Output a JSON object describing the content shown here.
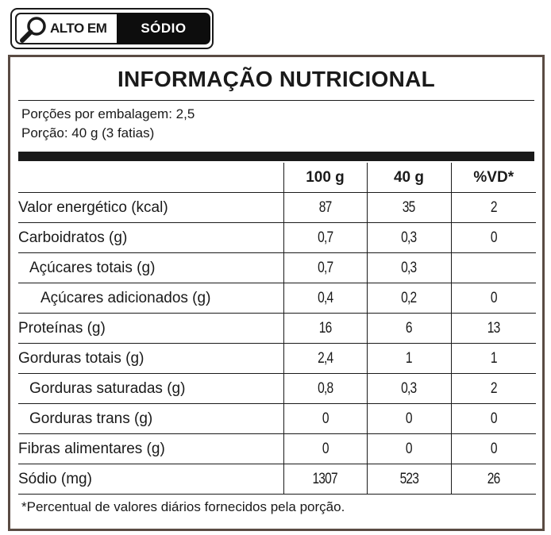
{
  "badge": {
    "left_text": "ALTO EM",
    "right_text": "SÓDIO",
    "icon": "magnifier-icon"
  },
  "label": {
    "title": "INFORMAÇÃO NUTRICIONAL",
    "servings_per_package": "Porções por embalagem: 2,5",
    "serving_size": "Porção: 40 g (3 fatias)",
    "columns": [
      "100 g",
      "40 g",
      "%VD*"
    ],
    "rows": [
      {
        "name": "Valor energético (kcal)",
        "indent": 0,
        "per100": "87",
        "perServing": "35",
        "vd": "2"
      },
      {
        "name": "Carboidratos (g)",
        "indent": 0,
        "per100": "0,7",
        "perServing": "0,3",
        "vd": "0"
      },
      {
        "name": "Açúcares totais (g)",
        "indent": 1,
        "per100": "0,7",
        "perServing": "0,3",
        "vd": ""
      },
      {
        "name": "Açúcares adicionados (g)",
        "indent": 2,
        "per100": "0,4",
        "perServing": "0,2",
        "vd": "0"
      },
      {
        "name": "Proteínas (g)",
        "indent": 0,
        "per100": "16",
        "perServing": "6",
        "vd": "13"
      },
      {
        "name": "Gorduras totais (g)",
        "indent": 0,
        "per100": "2,4",
        "perServing": "1",
        "vd": "1"
      },
      {
        "name": "Gorduras saturadas (g)",
        "indent": 1,
        "per100": "0,8",
        "perServing": "0,3",
        "vd": "2"
      },
      {
        "name": "Gorduras trans (g)",
        "indent": 1,
        "per100": "0",
        "perServing": "0",
        "vd": "0"
      },
      {
        "name": "Fibras alimentares (g)",
        "indent": 0,
        "per100": "0",
        "perServing": "0",
        "vd": "0"
      },
      {
        "name": "Sódio (mg)",
        "indent": 0,
        "per100": "1307",
        "perServing": "523",
        "vd": "26"
      }
    ],
    "footnote": "*Percentual de valores diários fornecidos pela porção."
  }
}
